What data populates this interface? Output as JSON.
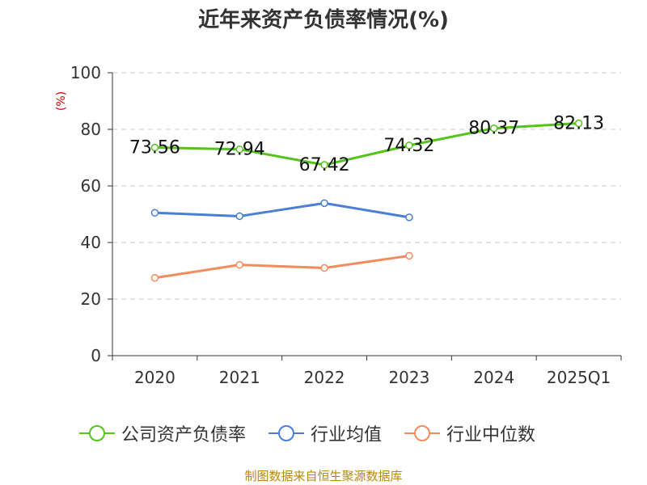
{
  "title": "近年来资产负债率情况(%)",
  "source": "制图数据来自恒生聚源数据库",
  "chart_data": {
    "type": "line",
    "title": "近年来资产负债率情况(%)",
    "ylabel": "(%)",
    "xlabel": "",
    "ylim": [
      0,
      100
    ],
    "yticks": [
      0,
      20,
      40,
      60,
      80,
      100
    ],
    "categories": [
      "2020",
      "2021",
      "2022",
      "2023",
      "2024",
      "2025Q1"
    ],
    "grid": true,
    "legend_position": "bottom",
    "series": [
      {
        "name": "公司资产负债率",
        "color": "#52c41a",
        "values": [
          73.56,
          72.94,
          67.42,
          74.32,
          80.37,
          82.13
        ],
        "labels": [
          "73.56",
          "72.94",
          "67.42",
          "74.32",
          "80.37",
          "82.13"
        ]
      },
      {
        "name": "行业均值",
        "color": "#4a7fd6",
        "values": [
          50.5,
          49.3,
          53.9,
          48.9,
          null,
          null
        ]
      },
      {
        "name": "行业中位数",
        "color": "#f28c5c",
        "values": [
          27.5,
          32.1,
          31.0,
          35.3,
          null,
          null
        ]
      }
    ]
  }
}
